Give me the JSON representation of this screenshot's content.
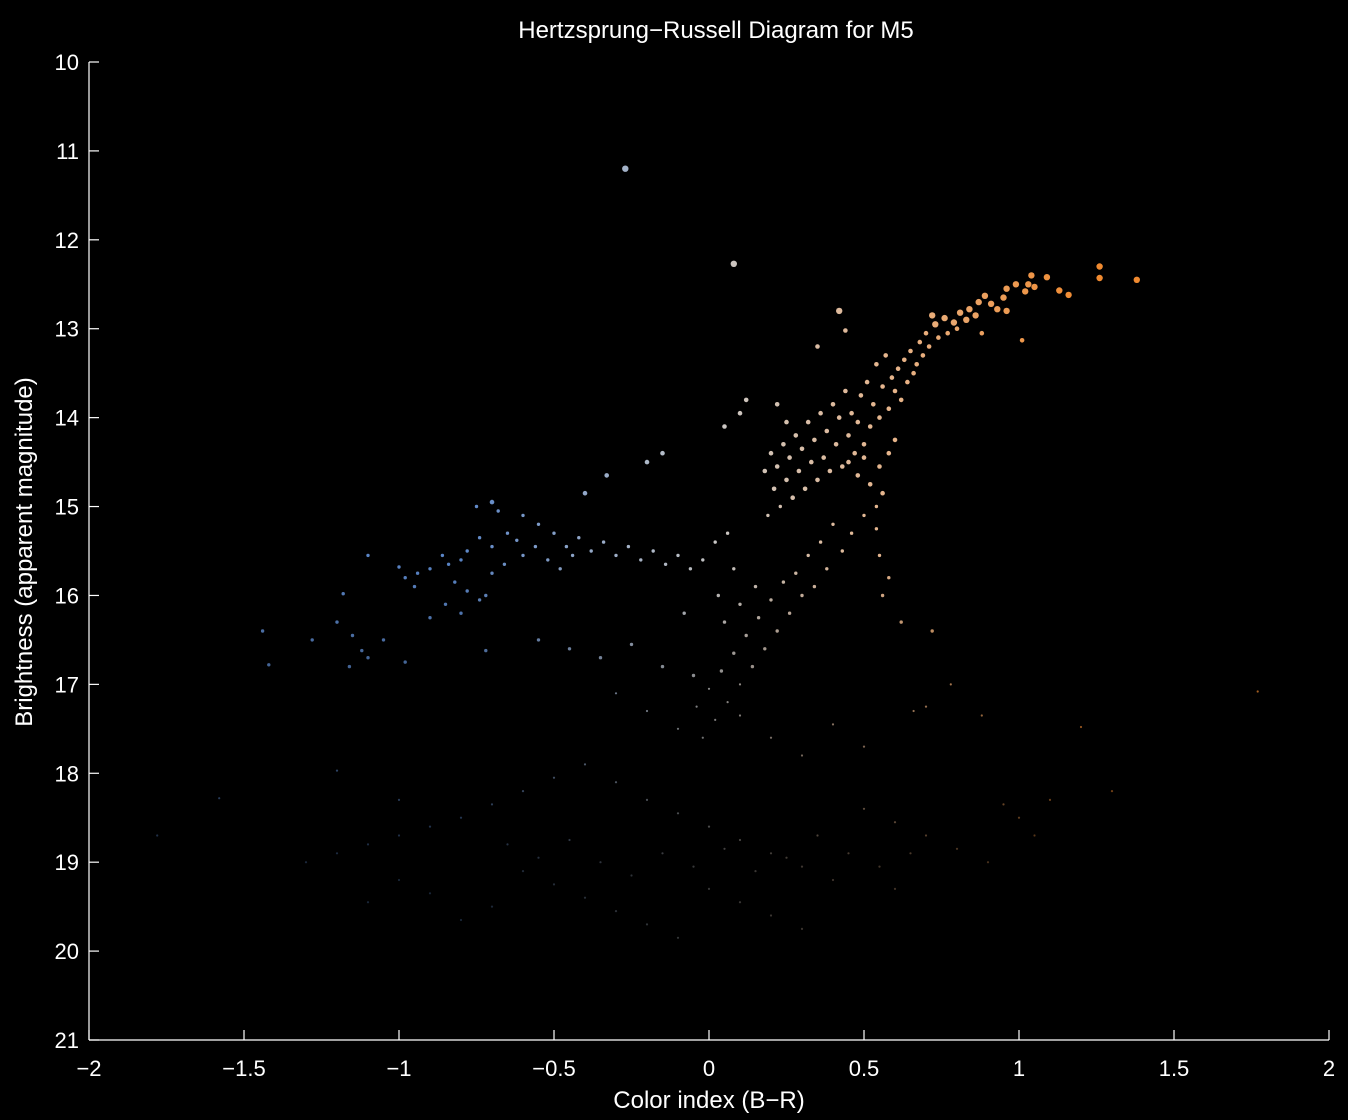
{
  "chart_data": {
    "type": "scatter",
    "title": "Hertzsprung−Russell Diagram for M5",
    "xlabel": "Color index (B−R)",
    "ylabel": "Brightness (apparent magnitude)",
    "xlim": [
      -2,
      2
    ],
    "ylim": [
      10,
      21
    ],
    "y_inverted": true,
    "grid": false,
    "background": "#000000",
    "axis_color": "#ffffff",
    "x_ticks": [
      -2,
      -1.5,
      -1,
      -0.5,
      0,
      0.5,
      1,
      1.5,
      2
    ],
    "x_tick_labels": [
      "−2",
      "−1.5",
      "−1",
      "−0.5",
      "0",
      "0.5",
      "1",
      "1.5",
      "2"
    ],
    "y_ticks": [
      10,
      11,
      12,
      13,
      14,
      15,
      16,
      17,
      18,
      19,
      20,
      21
    ],
    "y_tick_labels": [
      "10",
      "11",
      "12",
      "13",
      "14",
      "15",
      "16",
      "17",
      "18",
      "19",
      "20",
      "21"
    ],
    "color_scale": {
      "blue": "#5b86c8",
      "neutral": "#c8c8c8",
      "peach": "#e7b48a",
      "orange": "#f08a30"
    },
    "points": [
      [
        -0.27,
        11.2
      ],
      [
        0.08,
        12.27
      ],
      [
        1.26,
        12.3
      ],
      [
        1.26,
        12.43
      ],
      [
        1.38,
        12.45
      ],
      [
        1.16,
        12.62
      ],
      [
        1.13,
        12.57
      ],
      [
        1.09,
        12.42
      ],
      [
        1.04,
        12.4
      ],
      [
        1.03,
        12.5
      ],
      [
        1.05,
        12.53
      ],
      [
        1.02,
        12.58
      ],
      [
        0.99,
        12.5
      ],
      [
        0.96,
        12.55
      ],
      [
        0.95,
        12.65
      ],
      [
        0.93,
        12.78
      ],
      [
        0.96,
        12.8
      ],
      [
        0.91,
        12.72
      ],
      [
        0.89,
        12.63
      ],
      [
        0.87,
        12.7
      ],
      [
        0.86,
        12.85
      ],
      [
        0.84,
        12.78
      ],
      [
        0.83,
        12.9
      ],
      [
        0.81,
        12.82
      ],
      [
        0.8,
        13.0
      ],
      [
        0.79,
        12.93
      ],
      [
        0.77,
        13.05
      ],
      [
        0.76,
        12.88
      ],
      [
        0.74,
        13.1
      ],
      [
        0.73,
        12.95
      ],
      [
        0.72,
        12.85
      ],
      [
        0.71,
        13.2
      ],
      [
        0.7,
        13.05
      ],
      [
        0.69,
        13.3
      ],
      [
        0.68,
        13.15
      ],
      [
        0.67,
        13.4
      ],
      [
        1.01,
        13.13
      ],
      [
        0.88,
        13.05
      ],
      [
        0.66,
        13.5
      ],
      [
        0.65,
        13.25
      ],
      [
        0.64,
        13.6
      ],
      [
        0.63,
        13.35
      ],
      [
        0.62,
        13.8
      ],
      [
        0.61,
        13.45
      ],
      [
        0.6,
        13.7
      ],
      [
        0.59,
        13.55
      ],
      [
        0.58,
        13.9
      ],
      [
        0.57,
        13.3
      ],
      [
        0.56,
        13.65
      ],
      [
        0.55,
        14.0
      ],
      [
        0.54,
        13.4
      ],
      [
        0.53,
        13.85
      ],
      [
        0.52,
        14.1
      ],
      [
        0.51,
        13.6
      ],
      [
        0.5,
        14.3
      ],
      [
        0.49,
        13.75
      ],
      [
        0.48,
        14.05
      ],
      [
        0.47,
        14.4
      ],
      [
        0.46,
        13.95
      ],
      [
        0.45,
        14.2
      ],
      [
        0.44,
        13.7
      ],
      [
        0.43,
        14.55
      ],
      [
        0.42,
        14.0
      ],
      [
        0.41,
        14.3
      ],
      [
        0.4,
        13.85
      ],
      [
        0.39,
        14.6
      ],
      [
        0.38,
        14.15
      ],
      [
        0.37,
        14.45
      ],
      [
        0.36,
        13.95
      ],
      [
        0.35,
        14.7
      ],
      [
        0.34,
        14.25
      ],
      [
        0.33,
        14.5
      ],
      [
        0.32,
        14.05
      ],
      [
        0.31,
        14.8
      ],
      [
        0.3,
        14.35
      ],
      [
        0.29,
        14.6
      ],
      [
        0.28,
        14.2
      ],
      [
        0.27,
        14.9
      ],
      [
        0.26,
        14.45
      ],
      [
        0.25,
        14.7
      ],
      [
        0.24,
        14.3
      ],
      [
        0.23,
        15.0
      ],
      [
        0.22,
        14.55
      ],
      [
        0.21,
        14.8
      ],
      [
        0.2,
        14.4
      ],
      [
        0.19,
        15.1
      ],
      [
        0.18,
        14.6
      ],
      [
        0.45,
        14.5
      ],
      [
        0.48,
        14.65
      ],
      [
        0.5,
        14.45
      ],
      [
        0.52,
        14.75
      ],
      [
        0.55,
        14.55
      ],
      [
        0.58,
        14.4
      ],
      [
        0.6,
        14.25
      ],
      [
        0.56,
        14.85
      ],
      [
        0.54,
        15.0
      ],
      [
        0.5,
        15.1
      ],
      [
        0.46,
        15.3
      ],
      [
        0.43,
        15.5
      ],
      [
        0.4,
        15.2
      ],
      [
        0.38,
        15.7
      ],
      [
        0.36,
        15.4
      ],
      [
        0.34,
        15.9
      ],
      [
        0.32,
        15.55
      ],
      [
        0.3,
        16.0
      ],
      [
        0.28,
        15.75
      ],
      [
        0.26,
        16.2
      ],
      [
        0.24,
        15.85
      ],
      [
        0.22,
        16.4
      ],
      [
        0.2,
        16.05
      ],
      [
        0.18,
        16.6
      ],
      [
        0.16,
        16.25
      ],
      [
        0.14,
        16.8
      ],
      [
        0.12,
        16.45
      ],
      [
        0.1,
        17.0
      ],
      [
        0.08,
        16.65
      ],
      [
        0.06,
        17.2
      ],
      [
        0.04,
        16.85
      ],
      [
        0.02,
        17.4
      ],
      [
        0.0,
        17.05
      ],
      [
        -0.02,
        17.6
      ],
      [
        -0.04,
        17.25
      ],
      [
        0.42,
        12.8
      ],
      [
        0.44,
        13.02
      ],
      [
        0.35,
        13.2
      ],
      [
        0.12,
        13.8
      ],
      [
        0.1,
        13.95
      ],
      [
        0.05,
        14.1
      ],
      [
        0.22,
        13.85
      ],
      [
        0.25,
        14.05
      ],
      [
        -0.15,
        14.4
      ],
      [
        -0.2,
        14.5
      ],
      [
        -0.33,
        14.65
      ],
      [
        -0.4,
        14.85
      ],
      [
        -0.7,
        14.95
      ],
      [
        -0.75,
        15.0
      ],
      [
        -0.68,
        15.05
      ],
      [
        -0.6,
        15.1
      ],
      [
        -0.55,
        15.2
      ],
      [
        -0.5,
        15.3
      ],
      [
        -0.46,
        15.45
      ],
      [
        -0.42,
        15.35
      ],
      [
        -0.38,
        15.5
      ],
      [
        -0.34,
        15.4
      ],
      [
        -0.3,
        15.55
      ],
      [
        -0.26,
        15.45
      ],
      [
        -0.22,
        15.6
      ],
      [
        -0.18,
        15.5
      ],
      [
        -0.14,
        15.65
      ],
      [
        -0.1,
        15.55
      ],
      [
        -0.06,
        15.7
      ],
      [
        -0.02,
        15.6
      ],
      [
        0.02,
        15.4
      ],
      [
        0.06,
        15.3
      ],
      [
        -0.65,
        15.3
      ],
      [
        -0.62,
        15.38
      ],
      [
        -0.7,
        15.45
      ],
      [
        -0.74,
        15.35
      ],
      [
        -0.78,
        15.5
      ],
      [
        -0.8,
        15.6
      ],
      [
        -0.84,
        15.65
      ],
      [
        -0.86,
        15.55
      ],
      [
        -0.9,
        15.7
      ],
      [
        -0.94,
        15.75
      ],
      [
        -0.98,
        15.8
      ],
      [
        -1.0,
        15.68
      ],
      [
        -0.82,
        15.85
      ],
      [
        -0.78,
        15.95
      ],
      [
        -0.74,
        16.05
      ],
      [
        -0.7,
        15.75
      ],
      [
        -0.66,
        15.65
      ],
      [
        -0.6,
        15.55
      ],
      [
        -0.56,
        15.45
      ],
      [
        -0.52,
        15.6
      ],
      [
        -0.48,
        15.7
      ],
      [
        -0.44,
        15.55
      ],
      [
        -0.85,
        16.1
      ],
      [
        -0.9,
        16.25
      ],
      [
        -0.8,
        16.2
      ],
      [
        -0.72,
        16.0
      ],
      [
        -0.95,
        15.9
      ],
      [
        -1.1,
        15.55
      ],
      [
        -1.18,
        15.98
      ],
      [
        -1.2,
        16.3
      ],
      [
        -1.15,
        16.45
      ],
      [
        -1.12,
        16.62
      ],
      [
        -1.1,
        16.7
      ],
      [
        -1.05,
        16.5
      ],
      [
        -1.44,
        16.4
      ],
      [
        -1.42,
        16.78
      ],
      [
        -1.28,
        16.5
      ],
      [
        -1.16,
        16.8
      ],
      [
        -0.98,
        16.75
      ],
      [
        -0.72,
        16.62
      ],
      [
        0.72,
        16.4
      ],
      [
        0.62,
        16.3
      ],
      [
        0.56,
        16.0
      ],
      [
        0.58,
        15.8
      ],
      [
        0.55,
        15.55
      ],
      [
        0.54,
        15.25
      ],
      [
        0.78,
        17.0
      ],
      [
        0.7,
        17.25
      ],
      [
        0.66,
        17.3
      ],
      [
        1.77,
        17.08
      ],
      [
        1.2,
        17.48
      ],
      [
        0.88,
        17.35
      ],
      [
        -0.55,
        16.5
      ],
      [
        -0.45,
        16.6
      ],
      [
        -0.35,
        16.7
      ],
      [
        -0.25,
        16.55
      ],
      [
        -0.15,
        16.8
      ],
      [
        -0.05,
        16.9
      ],
      [
        0.05,
        16.3
      ],
      [
        0.1,
        16.1
      ],
      [
        0.15,
        15.9
      ],
      [
        0.08,
        15.7
      ],
      [
        0.03,
        16.0
      ],
      [
        -0.08,
        16.2
      ],
      [
        -0.3,
        17.1
      ],
      [
        -0.2,
        17.3
      ],
      [
        -0.1,
        17.5
      ],
      [
        0.1,
        17.35
      ],
      [
        0.2,
        17.6
      ],
      [
        0.3,
        17.8
      ],
      [
        0.4,
        17.45
      ],
      [
        0.5,
        17.7
      ],
      [
        -0.4,
        17.9
      ],
      [
        -0.5,
        18.05
      ],
      [
        -0.6,
        18.2
      ],
      [
        -0.7,
        18.35
      ],
      [
        -0.8,
        18.5
      ],
      [
        -0.9,
        18.6
      ],
      [
        -1.0,
        18.7
      ],
      [
        -1.1,
        18.8
      ],
      [
        -1.2,
        18.9
      ],
      [
        -1.3,
        19.0
      ],
      [
        -1.58,
        18.28
      ],
      [
        -1.78,
        18.7
      ],
      [
        -1.2,
        17.97
      ],
      [
        -1.0,
        18.3
      ],
      [
        -0.3,
        18.1
      ],
      [
        -0.2,
        18.3
      ],
      [
        -0.1,
        18.45
      ],
      [
        0.0,
        18.6
      ],
      [
        0.1,
        18.75
      ],
      [
        0.2,
        18.9
      ],
      [
        0.3,
        19.05
      ],
      [
        0.4,
        19.2
      ],
      [
        0.5,
        18.4
      ],
      [
        0.6,
        18.55
      ],
      [
        0.7,
        18.7
      ],
      [
        0.8,
        18.85
      ],
      [
        0.9,
        19.0
      ],
      [
        0.6,
        19.3
      ],
      [
        -0.6,
        19.1
      ],
      [
        -0.5,
        19.25
      ],
      [
        -0.4,
        19.4
      ],
      [
        -0.3,
        19.55
      ],
      [
        -0.2,
        19.7
      ],
      [
        -0.1,
        19.85
      ],
      [
        0.0,
        19.3
      ],
      [
        0.1,
        19.45
      ],
      [
        0.2,
        19.6
      ],
      [
        0.3,
        19.75
      ],
      [
        -0.7,
        19.5
      ],
      [
        -0.8,
        19.65
      ],
      [
        -0.9,
        19.35
      ],
      [
        -1.0,
        19.2
      ],
      [
        -1.1,
        19.45
      ],
      [
        -0.65,
        18.8
      ],
      [
        -0.55,
        18.95
      ],
      [
        -0.45,
        18.75
      ],
      [
        -0.35,
        19.0
      ],
      [
        -0.25,
        19.15
      ],
      [
        -0.15,
        18.9
      ],
      [
        -0.05,
        19.05
      ],
      [
        0.05,
        18.85
      ],
      [
        0.15,
        19.1
      ],
      [
        0.25,
        18.95
      ],
      [
        0.35,
        18.7
      ],
      [
        0.45,
        18.9
      ],
      [
        0.55,
        19.05
      ],
      [
        0.65,
        18.9
      ],
      [
        1.0,
        18.5
      ],
      [
        1.1,
        18.3
      ],
      [
        1.3,
        18.2
      ],
      [
        0.95,
        18.35
      ],
      [
        1.05,
        18.7
      ]
    ]
  }
}
